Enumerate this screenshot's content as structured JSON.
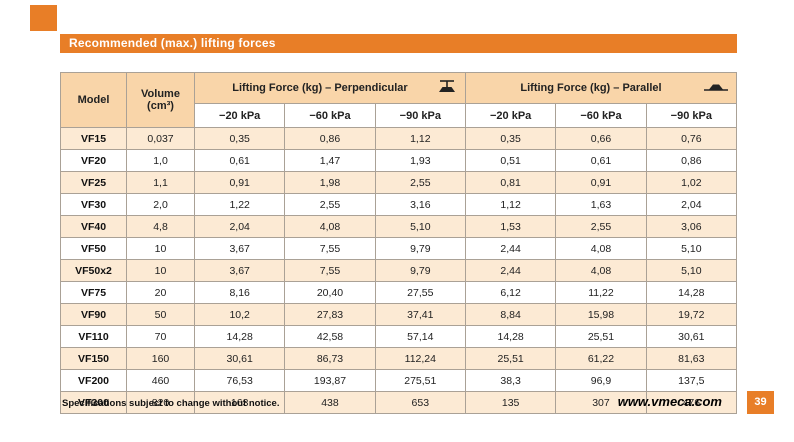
{
  "page": {
    "title": "Recommended (max.) lifting forces",
    "footer_note": "Specifications subject to change without notice.",
    "website": "www.vmeca.com",
    "page_number": "39",
    "accent_color": "#e87e27"
  },
  "table": {
    "col_model": "Model",
    "col_volume": "Volume",
    "col_volume_unit": "(cm³)",
    "group_perpendicular": "Lifting Force (kg) – Perpendicular",
    "group_parallel": "Lifting Force (kg) – Parallel",
    "perpendicular_icon": "suction-cup-perpendicular-icon",
    "parallel_icon": "suction-cup-parallel-icon",
    "kpa_headers": [
      "−20 kPa",
      "−60 kPa",
      "−90 kPa",
      "−20 kPa",
      "−60 kPa",
      "−90 kPa"
    ],
    "rows": [
      {
        "model": "VF15",
        "volume": "0,037",
        "values": [
          "0,35",
          "0,86",
          "1,12",
          "0,35",
          "0,66",
          "0,76"
        ]
      },
      {
        "model": "VF20",
        "volume": "1,0",
        "values": [
          "0,61",
          "1,47",
          "1,93",
          "0,51",
          "0,61",
          "0,86"
        ]
      },
      {
        "model": "VF25",
        "volume": "1,1",
        "values": [
          "0,91",
          "1,98",
          "2,55",
          "0,81",
          "0,91",
          "1,02"
        ]
      },
      {
        "model": "VF30",
        "volume": "2,0",
        "values": [
          "1,22",
          "2,55",
          "3,16",
          "1,12",
          "1,63",
          "2,04"
        ]
      },
      {
        "model": "VF40",
        "volume": "4,8",
        "values": [
          "2,04",
          "4,08",
          "5,10",
          "1,53",
          "2,55",
          "3,06"
        ]
      },
      {
        "model": "VF50",
        "volume": "10",
        "values": [
          "3,67",
          "7,55",
          "9,79",
          "2,44",
          "4,08",
          "5,10"
        ]
      },
      {
        "model": "VF50x2",
        "volume": "10",
        "values": [
          "3,67",
          "7,55",
          "9,79",
          "2,44",
          "4,08",
          "5,10"
        ]
      },
      {
        "model": "VF75",
        "volume": "20",
        "values": [
          "8,16",
          "20,40",
          "27,55",
          "6,12",
          "11,22",
          "14,28"
        ]
      },
      {
        "model": "VF90",
        "volume": "50",
        "values": [
          "10,2",
          "27,83",
          "37,41",
          "8,84",
          "15,98",
          "19,72"
        ]
      },
      {
        "model": "VF110",
        "volume": "70",
        "values": [
          "14,28",
          "42,58",
          "57,14",
          "14,28",
          "25,51",
          "30,61"
        ]
      },
      {
        "model": "VF150",
        "volume": "160",
        "values": [
          "30,61",
          "86,73",
          "112,24",
          "25,51",
          "61,22",
          "81,63"
        ]
      },
      {
        "model": "VF200",
        "volume": "460",
        "values": [
          "76,53",
          "193,87",
          "275,51",
          "38,3",
          "96,9",
          "137,5"
        ]
      },
      {
        "model": "VF300",
        "volume": "820",
        "values": [
          "163",
          "438",
          "653",
          "135",
          "307",
          "476"
        ]
      }
    ]
  }
}
